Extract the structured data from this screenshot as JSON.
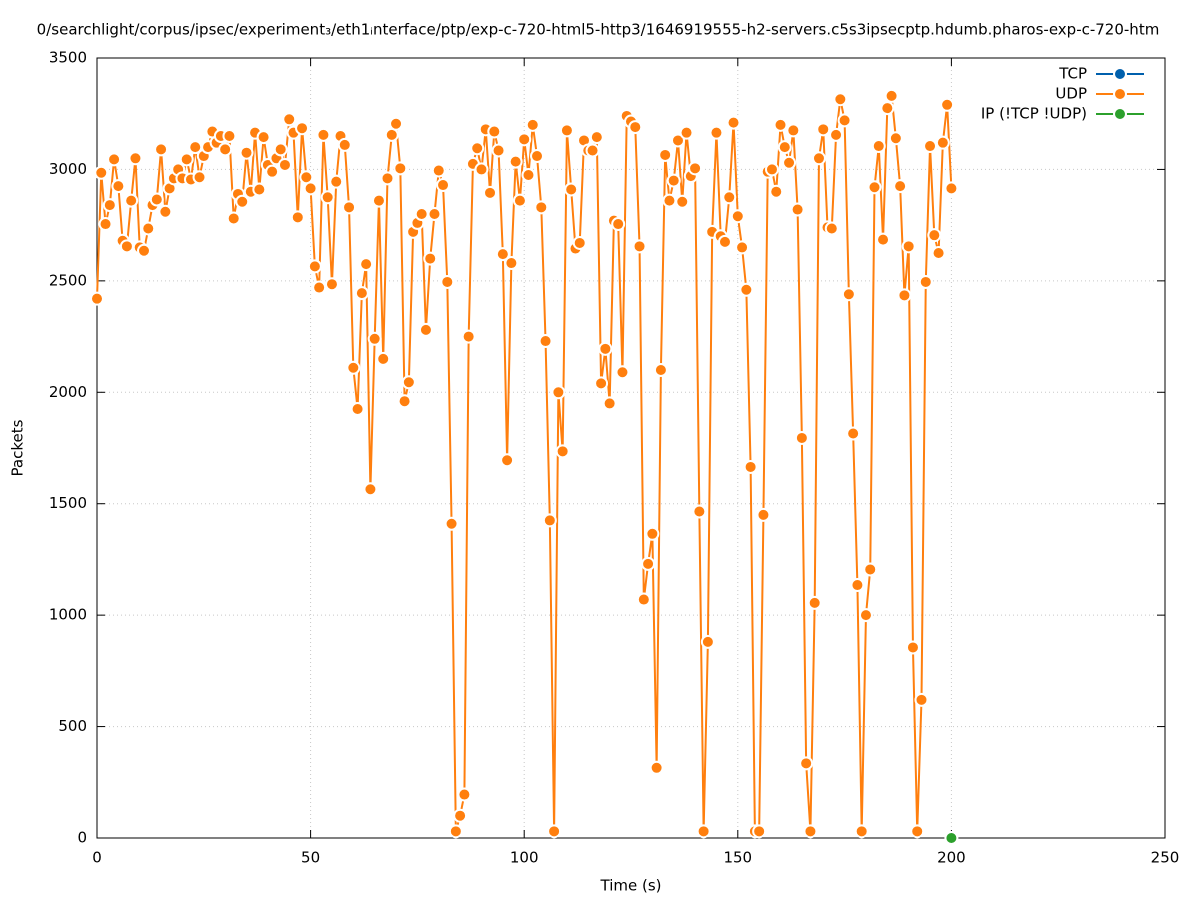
{
  "chart_data": {
    "type": "line",
    "title": "0/searchlight/corpus/ipsec/experiment₃/eth1ᵢnterface/ptp/exp-c-720-html5-http3/1646919555-h2-servers.c5s3ipsecptp.hdumb.pharos-exp-c-720-htm",
    "x_label": "Time (s)",
    "y_label": "Packets",
    "xlim": [
      0,
      250
    ],
    "xticks": [
      0,
      50,
      100,
      150,
      200,
      250
    ],
    "ylim": [
      0,
      3500
    ],
    "yticks": [
      0,
      500,
      1000,
      1500,
      2000,
      2500,
      3000,
      3500
    ],
    "grid": true,
    "legend": "top-right",
    "x": [
      0,
      1,
      2,
      3,
      4,
      5,
      6,
      7,
      8,
      9,
      10,
      11,
      12,
      13,
      14,
      15,
      16,
      17,
      18,
      19,
      20,
      21,
      22,
      23,
      24,
      25,
      26,
      27,
      28,
      29,
      30,
      31,
      32,
      33,
      34,
      35,
      36,
      37,
      38,
      39,
      40,
      41,
      42,
      43,
      44,
      45,
      46,
      47,
      48,
      49,
      50,
      51,
      52,
      53,
      54,
      55,
      56,
      57,
      58,
      59,
      60,
      61,
      62,
      63,
      64,
      65,
      66,
      67,
      68,
      69,
      70,
      71,
      72,
      73,
      74,
      75,
      76,
      77,
      78,
      79,
      80,
      81,
      82,
      83,
      84,
      85,
      86,
      87,
      88,
      89,
      90,
      91,
      92,
      93,
      94,
      95,
      96,
      97,
      98,
      99,
      100,
      101,
      102,
      103,
      104,
      105,
      106,
      107,
      108,
      109,
      110,
      111,
      112,
      113,
      114,
      115,
      116,
      117,
      118,
      119,
      120,
      121,
      122,
      123,
      124,
      125,
      126,
      127,
      128,
      129,
      130,
      131,
      132,
      133,
      134,
      135,
      136,
      137,
      138,
      139,
      140,
      141,
      142,
      143,
      144,
      145,
      146,
      147,
      148,
      149,
      150,
      151,
      152,
      153,
      154,
      155,
      156,
      157,
      158,
      159,
      160,
      161,
      162,
      163,
      164,
      165,
      166,
      167,
      168,
      169,
      170,
      171,
      172,
      173,
      174,
      175,
      176,
      177,
      178,
      179,
      180,
      181,
      182,
      183,
      184,
      185,
      186,
      187,
      188,
      189,
      190,
      191,
      192,
      193,
      194,
      195,
      196,
      197,
      198,
      199,
      200
    ],
    "series": [
      {
        "name": "TCP",
        "color": "#0060ad",
        "x": [],
        "values": []
      },
      {
        "name": "UDP",
        "color": "#ff7f0e",
        "values": [
          2420,
          2985,
          2755,
          2840,
          3045,
          2925,
          2680,
          2655,
          2860,
          3050,
          2650,
          2635,
          2735,
          2840,
          2865,
          3090,
          2810,
          2915,
          2960,
          3000,
          2960,
          3045,
          2955,
          3100,
          2965,
          3060,
          3100,
          3170,
          3120,
          3150,
          3090,
          3150,
          2780,
          2890,
          2855,
          3075,
          2900,
          3165,
          2910,
          3145,
          3020,
          2990,
          3050,
          3090,
          3020,
          3225,
          3165,
          2785,
          3185,
          2965,
          2915,
          2565,
          2470,
          3155,
          2875,
          2485,
          2945,
          3150,
          3110,
          2830,
          2110,
          1925,
          2445,
          2575,
          1565,
          2240,
          2860,
          2150,
          2960,
          3155,
          3205,
          3005,
          1960,
          2045,
          2720,
          2760,
          2800,
          2280,
          2600,
          2800,
          2995,
          2930,
          2495,
          1410,
          30,
          100,
          195,
          2250,
          3025,
          3095,
          3000,
          3180,
          2895,
          3170,
          3085,
          2620,
          1695,
          2580,
          3035,
          2860,
          3135,
          2975,
          3200,
          3060,
          2830,
          2230,
          1425,
          30,
          2000,
          1735,
          3175,
          2910,
          2645,
          2670,
          3130,
          3085,
          3085,
          3145,
          2040,
          2195,
          1950,
          2770,
          2755,
          2090,
          3240,
          3215,
          3190,
          2655,
          1070,
          1230,
          1365,
          315,
          2100,
          3065,
          2860,
          2950,
          3130,
          2855,
          3165,
          2970,
          3005,
          1465,
          30,
          880,
          2720,
          3165,
          2700,
          2675,
          2875,
          3210,
          2790,
          2650,
          2460,
          1665,
          30,
          30,
          1450,
          2990,
          3000,
          2900,
          3200,
          3100,
          3030,
          3175,
          2820,
          1795,
          335,
          30,
          1055,
          3050,
          3180,
          2740,
          2735,
          3155,
          3315,
          3220,
          2440,
          1815,
          1135,
          30,
          1000,
          1205,
          2920,
          3105,
          2685,
          3275,
          3330,
          3140,
          2925,
          2435,
          2655,
          855,
          30,
          620,
          2495,
          3105,
          2705,
          2625,
          3120,
          3290,
          2915
        ]
      },
      {
        "name": "IP (!TCP  !UDP)",
        "color": "#2ca02c",
        "x": [
          200
        ],
        "values": [
          0
        ]
      }
    ]
  }
}
